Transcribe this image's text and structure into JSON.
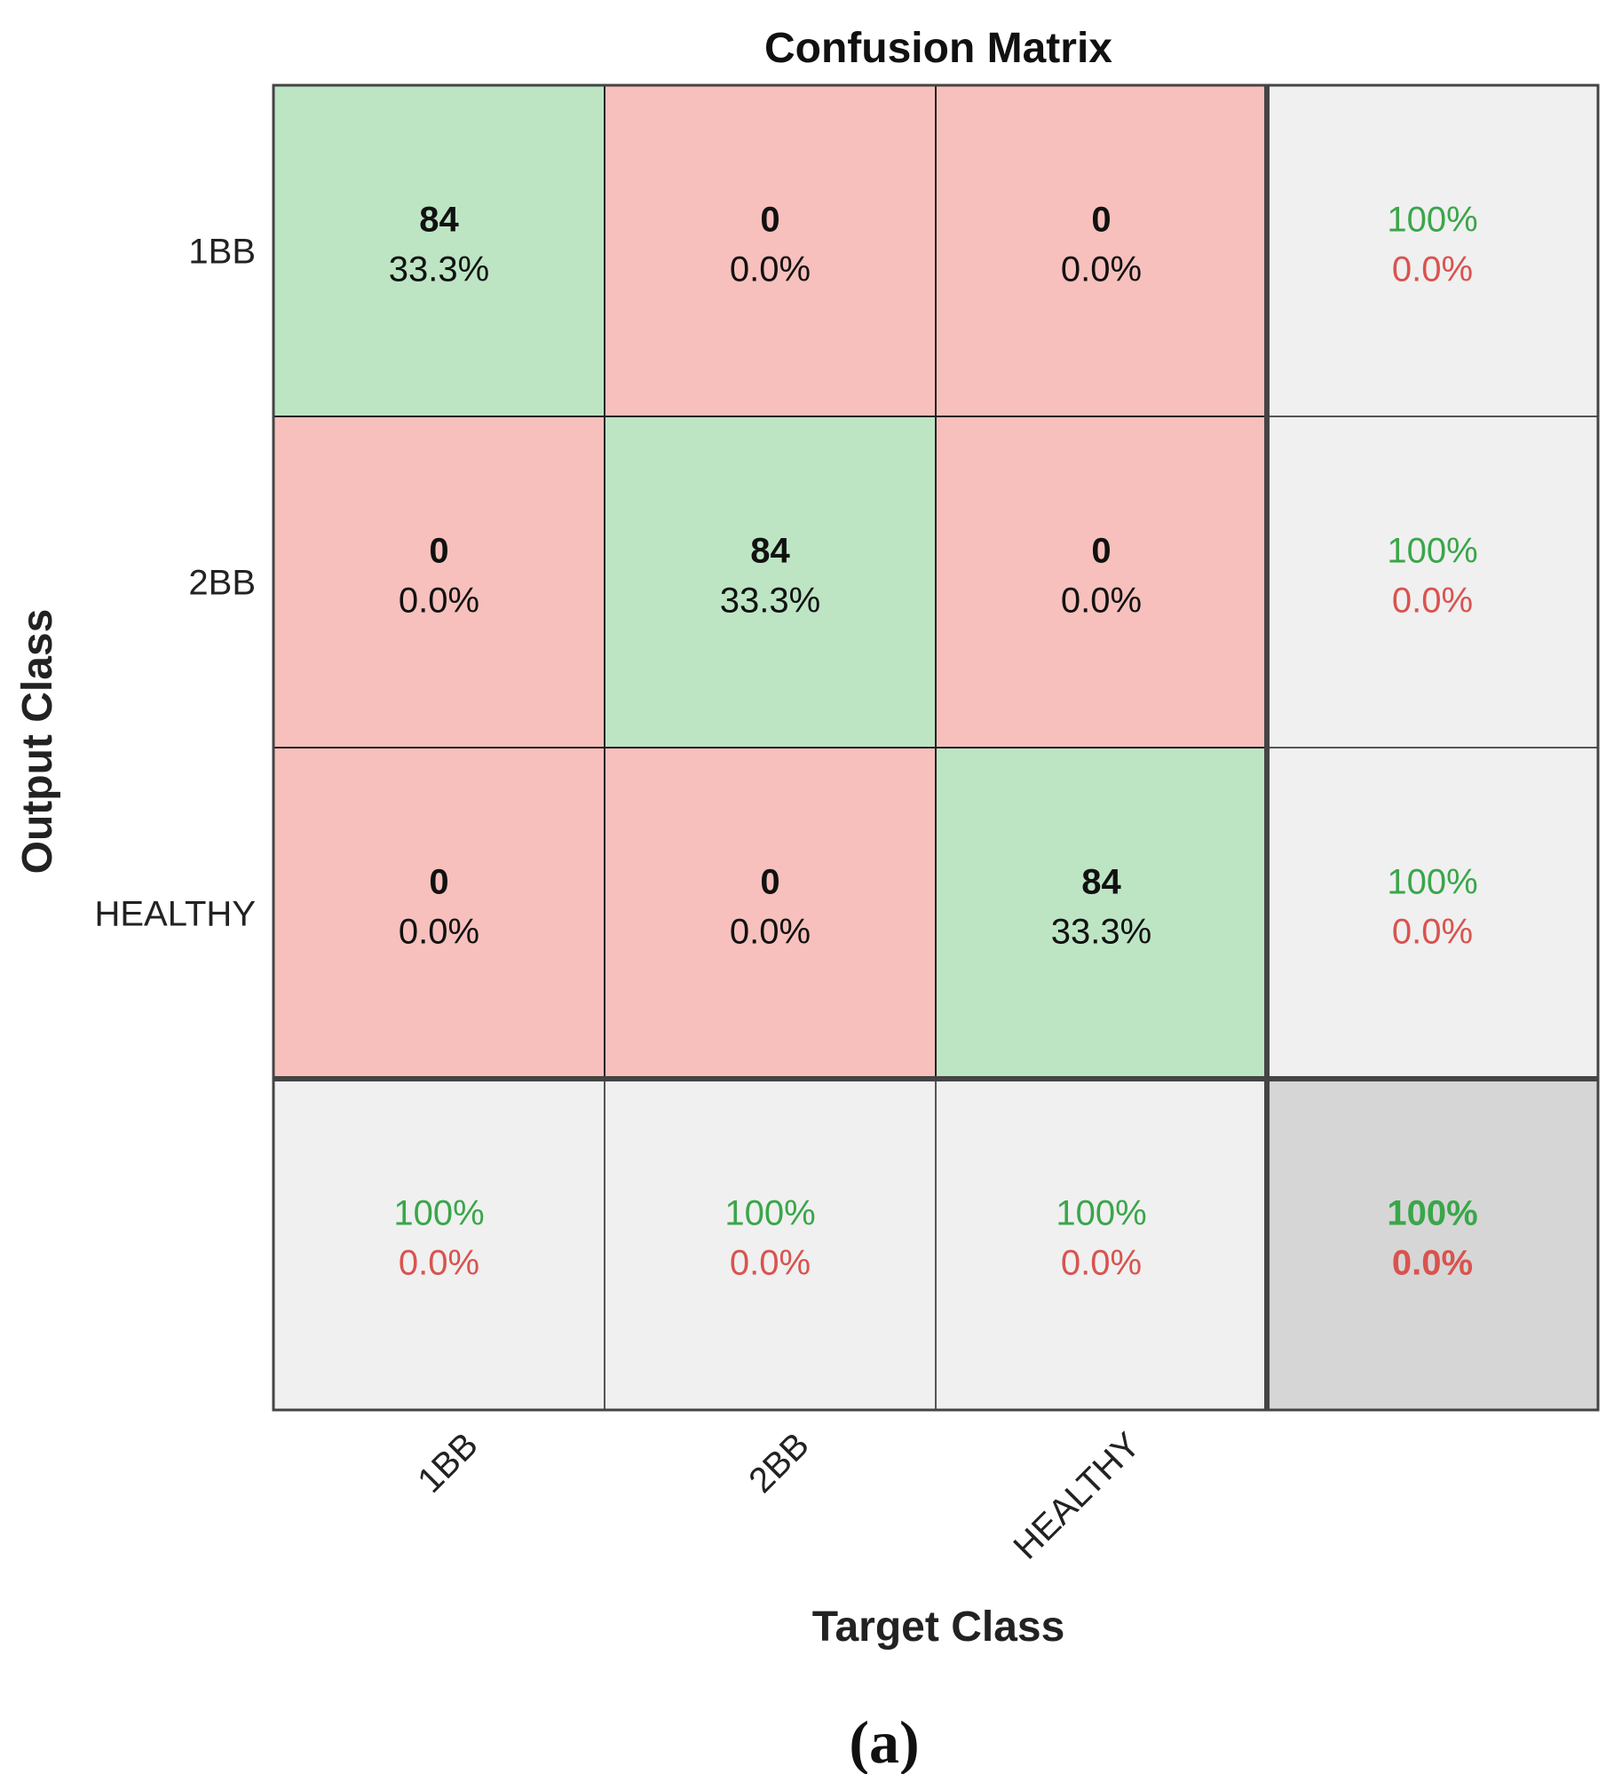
{
  "chart_data": {
    "type": "heatmap",
    "title": "Confusion Matrix",
    "xlabel": "Target Class",
    "ylabel": "Output Class",
    "panel_label": "(a)",
    "classes": [
      "1BB",
      "2BB",
      "HEALTHY"
    ],
    "counts": [
      [
        84,
        0,
        0
      ],
      [
        0,
        84,
        0
      ],
      [
        0,
        0,
        84
      ]
    ],
    "percents": [
      [
        "33.3%",
        "0.0%",
        "0.0%"
      ],
      [
        "0.0%",
        "33.3%",
        "0.0%"
      ],
      [
        "0.0%",
        "0.0%",
        "33.3%"
      ]
    ],
    "row_summary": [
      {
        "correct": "100%",
        "incorrect": "0.0%"
      },
      {
        "correct": "100%",
        "incorrect": "0.0%"
      },
      {
        "correct": "100%",
        "incorrect": "0.0%"
      }
    ],
    "col_summary": [
      {
        "correct": "100%",
        "incorrect": "0.0%"
      },
      {
        "correct": "100%",
        "incorrect": "0.0%"
      },
      {
        "correct": "100%",
        "incorrect": "0.0%"
      }
    ],
    "overall": {
      "correct": "100%",
      "incorrect": "0.0%"
    },
    "colors": {
      "correct_cell": "#bde5c4",
      "incorrect_cell": "#f7c0bc",
      "summary_cell": "#f0f0f0",
      "overall_cell": "#d6d6d6",
      "correct_text": "#3aa64a",
      "incorrect_text": "#d9534f"
    }
  }
}
